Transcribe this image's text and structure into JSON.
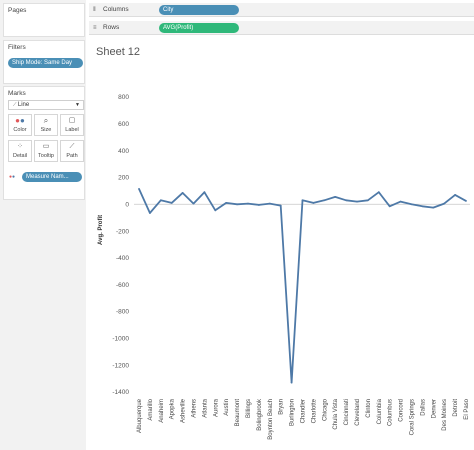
{
  "left_panel": {
    "pages_title": "Pages",
    "filters_title": "Filters",
    "filter_pill": "Ship Mode: Same Day",
    "marks_title": "Marks",
    "mark_type": "Line",
    "mark_buttons": [
      {
        "label": "Color",
        "icon": "color-icon"
      },
      {
        "label": "Size",
        "icon": "size-icon"
      },
      {
        "label": "Label",
        "icon": "label-icon"
      },
      {
        "label": "Detail",
        "icon": "detail-icon"
      },
      {
        "label": "Tooltip",
        "icon": "tooltip-icon"
      },
      {
        "label": "Path",
        "icon": "path-icon"
      }
    ],
    "measure_pill": "Measure Nam..."
  },
  "shelves": {
    "columns_label": "Columns",
    "columns_pill": "City",
    "rows_label": "Rows",
    "rows_pill": "AVG(Profit)"
  },
  "sheet": {
    "title": "Sheet 12"
  },
  "colors": {
    "line": "#4e79a7",
    "pill_blue": "#4a8fb6",
    "pill_green": "#2fb87a",
    "zero_line": "#c8c8c8"
  },
  "chart_data": {
    "type": "line",
    "title": "",
    "xlabel": "",
    "ylabel": "Avg. Profit",
    "ylim": [
      -1400,
      800
    ],
    "yticks": [
      800,
      600,
      400,
      200,
      0,
      -200,
      -400,
      -600,
      -800,
      -1000,
      -1200,
      -1400
    ],
    "grid": false,
    "categories": [
      "Albuquerque",
      "Amarillo",
      "Anaheim",
      "Apopka",
      "Asheville",
      "Athens",
      "Atlanta",
      "Aurora",
      "Austin",
      "Beaumont",
      "Billings",
      "Bolingbrook",
      "Boynton Beach",
      "Bryan",
      "Burlington",
      "Chandler",
      "Charlotte",
      "Chicago",
      "Chula Vista",
      "Cincinnati",
      "Cleveland",
      "Clinton",
      "Columbia",
      "Columbus",
      "Concord",
      "Coral Springs",
      "Dallas",
      "Denver",
      "Des Moines",
      "Detroit",
      "El Paso"
    ],
    "series": [
      {
        "values": [
          115,
          -65,
          30,
          10,
          85,
          5,
          90,
          -45,
          10,
          0,
          5,
          -5,
          5,
          -10,
          -1330,
          30,
          10,
          30,
          55,
          30,
          20,
          30,
          90,
          -15,
          20,
          0,
          -15,
          -25,
          5,
          70,
          25
        ]
      }
    ]
  }
}
